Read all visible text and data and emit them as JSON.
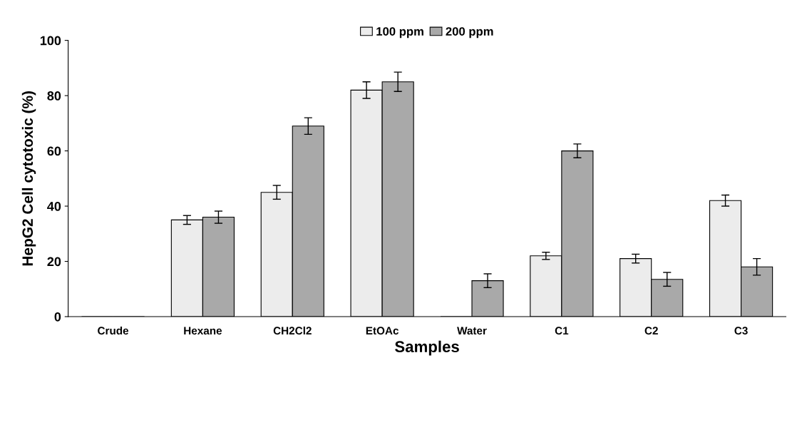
{
  "chart_data": {
    "type": "bar",
    "xlabel": "Samples",
    "ylabel": "HepG2 Cell cytotoxic (%)",
    "categories": [
      "Crude",
      "Hexane",
      "CH2Cl2",
      "EtOAc",
      "Water",
      "C1",
      "C2",
      "C3"
    ],
    "series": [
      {
        "name": "100 ppm",
        "color": "#ececec",
        "values": [
          0,
          35,
          45,
          82,
          0,
          22,
          21,
          42
        ],
        "errors": [
          null,
          1.6,
          2.5,
          3,
          null,
          1.3,
          1.6,
          2
        ]
      },
      {
        "name": "200 ppm",
        "color": "#a9a9a9",
        "values": [
          0,
          36,
          69,
          85,
          13,
          60,
          13.5,
          18
        ],
        "errors": [
          null,
          2.2,
          3,
          3.5,
          2.5,
          2.5,
          2.5,
          3
        ]
      }
    ],
    "ylim": [
      0,
      100
    ],
    "yticks": [
      0,
      20,
      40,
      60,
      80,
      100
    ],
    "grid": false,
    "legend": "top"
  }
}
